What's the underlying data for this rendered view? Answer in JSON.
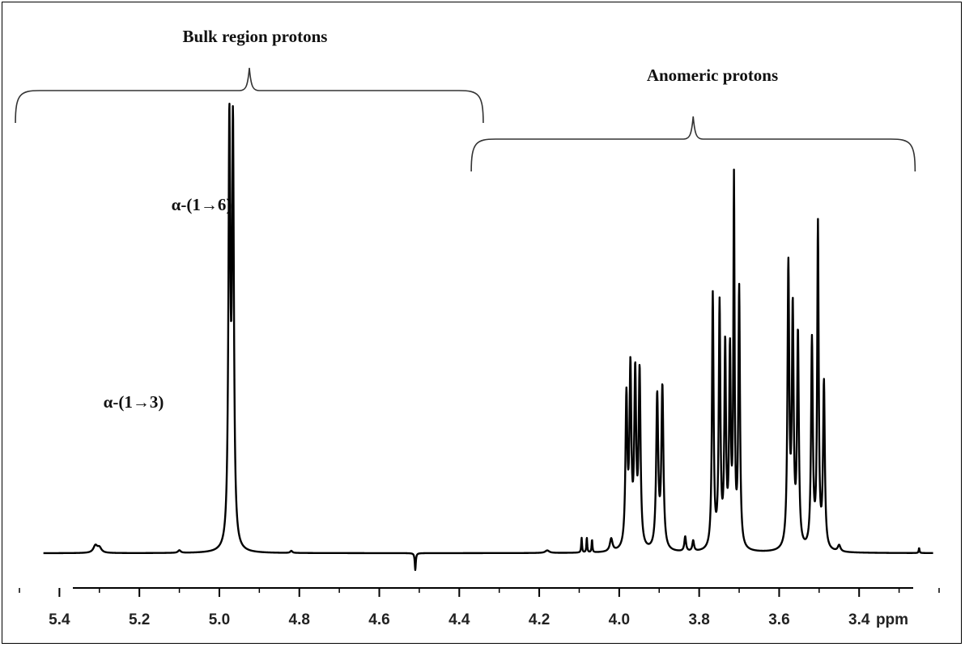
{
  "chart_data": {
    "type": "line",
    "title": "",
    "xlabel": "ppm",
    "ylabel": "",
    "xlim": [
      5.5,
      3.2
    ],
    "x_reversed": true,
    "ylim": [
      -0.05,
      1.0
    ],
    "grid": false,
    "x_ticks": [
      5.4,
      5.2,
      5.0,
      4.8,
      4.6,
      4.4,
      4.2,
      4.0,
      3.8,
      3.6,
      3.4
    ],
    "x_tick_labels": [
      "5.4",
      "5.2",
      "5.0",
      "4.8",
      "4.6",
      "4.4",
      "4.2",
      "4.0",
      "3.8",
      "3.6",
      "3.4"
    ],
    "x_unit_label": "ppm",
    "series": [
      {
        "color": "#000000",
        "peaks": [
          {
            "x": 5.31,
            "h": 0.017,
            "w": 0.006
          },
          {
            "x": 5.3,
            "h": 0.012,
            "w": 0.006
          },
          {
            "x": 5.1,
            "h": 0.006,
            "w": 0.004
          },
          {
            "x": 4.975,
            "h": 0.98,
            "w": 0.0028
          },
          {
            "x": 4.966,
            "h": 0.97,
            "w": 0.0028
          },
          {
            "x": 4.82,
            "h": 0.005,
            "w": 0.003
          },
          {
            "x": 4.51,
            "h": -0.04,
            "w": 0.0015
          },
          {
            "x": 4.18,
            "h": 0.006,
            "w": 0.006
          },
          {
            "x": 4.094,
            "h": 0.035,
            "w": 0.0012
          },
          {
            "x": 4.081,
            "h": 0.035,
            "w": 0.0012
          },
          {
            "x": 4.068,
            "h": 0.03,
            "w": 0.0012
          },
          {
            "x": 4.02,
            "h": 0.03,
            "w": 0.004
          },
          {
            "x": 3.982,
            "h": 0.35,
            "w": 0.0028
          },
          {
            "x": 3.972,
            "h": 0.41,
            "w": 0.0028
          },
          {
            "x": 3.96,
            "h": 0.4,
            "w": 0.0028
          },
          {
            "x": 3.949,
            "h": 0.41,
            "w": 0.0028
          },
          {
            "x": 3.905,
            "h": 0.36,
            "w": 0.003
          },
          {
            "x": 3.892,
            "h": 0.38,
            "w": 0.003
          },
          {
            "x": 3.835,
            "h": 0.035,
            "w": 0.0025
          },
          {
            "x": 3.815,
            "h": 0.025,
            "w": 0.0025
          },
          {
            "x": 3.766,
            "h": 0.6,
            "w": 0.0024
          },
          {
            "x": 3.749,
            "h": 0.57,
            "w": 0.0024
          },
          {
            "x": 3.735,
            "h": 0.47,
            "w": 0.0024
          },
          {
            "x": 3.723,
            "h": 0.45,
            "w": 0.0024
          },
          {
            "x": 3.713,
            "h": 0.85,
            "w": 0.0018
          },
          {
            "x": 3.7,
            "h": 0.61,
            "w": 0.0024
          },
          {
            "x": 3.577,
            "h": 0.66,
            "w": 0.0026
          },
          {
            "x": 3.566,
            "h": 0.55,
            "w": 0.0026
          },
          {
            "x": 3.553,
            "h": 0.5,
            "w": 0.0026
          },
          {
            "x": 3.518,
            "h": 0.49,
            "w": 0.0026
          },
          {
            "x": 3.503,
            "h": 0.76,
            "w": 0.0022
          },
          {
            "x": 3.488,
            "h": 0.39,
            "w": 0.0026
          },
          {
            "x": 3.45,
            "h": 0.015,
            "w": 0.004
          },
          {
            "x": 3.25,
            "h": 0.012,
            "w": 0.0012
          }
        ]
      }
    ],
    "annotations": [
      {
        "text": "Bulk region protons",
        "range": [
          5.51,
          4.34
        ]
      },
      {
        "text": "Anomeric  protons",
        "range": [
          4.37,
          3.26
        ]
      },
      {
        "text": "α-(1→6)",
        "x": 5.06
      },
      {
        "text": "α-(1→3)",
        "x": 5.36
      }
    ]
  }
}
